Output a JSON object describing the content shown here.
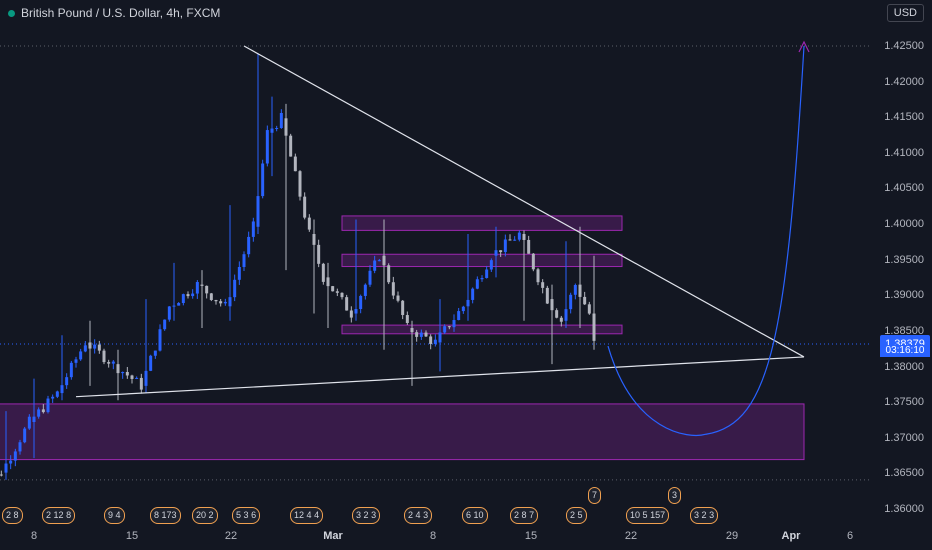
{
  "header": {
    "symbol_title": "British Pound / U.S. Dollar, 4h, FXCM",
    "currency_button": "USD"
  },
  "price_scale": {
    "ticks": [
      "1.42500",
      "1.42000",
      "1.41500",
      "1.41000",
      "1.40500",
      "1.40000",
      "1.39500",
      "1.39000",
      "1.38500",
      "1.38000",
      "1.37500",
      "1.37000",
      "1.36500",
      "1.36000"
    ],
    "current_price": "1.38379",
    "countdown": "03:16:10"
  },
  "time_scale": {
    "ticks": [
      "8",
      "15",
      "22",
      "Mar",
      "8",
      "15",
      "22",
      "29",
      "Apr",
      "6"
    ],
    "bold_ticks": [
      "Mar"
    ]
  },
  "events": {
    "flags": [
      "2",
      "8",
      "2",
      "12",
      "8",
      "9",
      "4",
      "8",
      "173",
      "20",
      "2",
      "5",
      "3",
      "6",
      "12",
      "4",
      "4",
      "3",
      "2",
      "3",
      "2",
      "4",
      "3",
      "6",
      "10",
      "2",
      "8",
      "7",
      "2",
      "5",
      "10",
      "5",
      "157",
      "3",
      "2",
      "3",
      "7",
      "3"
    ]
  },
  "chart_data": {
    "type": "candlestick",
    "title": "British Pound / U.S. Dollar, 4h, FXCM",
    "y_range": [
      1.358,
      1.432
    ],
    "x_range": [
      "2021-02-01",
      "2021-04-08"
    ],
    "current_price": 1.38379,
    "candles_approx": [
      {
        "date": "2021-02-04",
        "open": 1.363,
        "close": 1.366,
        "high": 1.367,
        "low": 1.362
      },
      {
        "date": "2021-02-06",
        "open": 1.366,
        "close": 1.373,
        "high": 1.3745,
        "low": 1.365
      },
      {
        "date": "2021-02-08",
        "open": 1.373,
        "close": 1.377,
        "high": 1.379,
        "low": 1.368
      },
      {
        "date": "2021-02-10",
        "open": 1.377,
        "close": 1.384,
        "high": 1.385,
        "low": 1.376
      },
      {
        "date": "2021-02-12",
        "open": 1.384,
        "close": 1.381,
        "high": 1.387,
        "low": 1.378
      },
      {
        "date": "2021-02-14",
        "open": 1.381,
        "close": 1.378,
        "high": 1.383,
        "low": 1.376
      },
      {
        "date": "2021-02-16",
        "open": 1.378,
        "close": 1.389,
        "high": 1.39,
        "low": 1.377
      },
      {
        "date": "2021-02-18",
        "open": 1.389,
        "close": 1.392,
        "high": 1.395,
        "low": 1.387
      },
      {
        "date": "2021-02-20",
        "open": 1.392,
        "close": 1.389,
        "high": 1.394,
        "low": 1.386
      },
      {
        "date": "2021-02-22",
        "open": 1.389,
        "close": 1.4,
        "high": 1.403,
        "low": 1.387
      },
      {
        "date": "2021-02-24",
        "open": 1.4,
        "close": 1.413,
        "high": 1.424,
        "low": 1.399
      },
      {
        "date": "2021-02-25",
        "open": 1.413,
        "close": 1.415,
        "high": 1.418,
        "low": 1.407
      },
      {
        "date": "2021-02-26",
        "open": 1.415,
        "close": 1.399,
        "high": 1.417,
        "low": 1.394
      },
      {
        "date": "2021-02-28",
        "open": 1.399,
        "close": 1.393,
        "high": 1.401,
        "low": 1.388
      },
      {
        "date": "2021-03-01",
        "open": 1.393,
        "close": 1.388,
        "high": 1.395,
        "low": 1.386
      },
      {
        "date": "2021-03-03",
        "open": 1.388,
        "close": 1.396,
        "high": 1.401,
        "low": 1.387
      },
      {
        "date": "2021-03-05",
        "open": 1.396,
        "close": 1.386,
        "high": 1.401,
        "low": 1.383
      },
      {
        "date": "2021-03-07",
        "open": 1.386,
        "close": 1.384,
        "high": 1.387,
        "low": 1.378
      },
      {
        "date": "2021-03-09",
        "open": 1.384,
        "close": 1.389,
        "high": 1.39,
        "low": 1.38
      },
      {
        "date": "2021-03-11",
        "open": 1.389,
        "close": 1.396,
        "high": 1.399,
        "low": 1.387
      },
      {
        "date": "2021-03-13",
        "open": 1.396,
        "close": 1.399,
        "high": 1.4,
        "low": 1.393
      },
      {
        "date": "2021-03-15",
        "open": 1.399,
        "close": 1.39,
        "high": 1.399,
        "low": 1.387
      },
      {
        "date": "2021-03-17",
        "open": 1.39,
        "close": 1.387,
        "high": 1.392,
        "low": 1.381
      },
      {
        "date": "2021-03-18",
        "open": 1.387,
        "close": 1.392,
        "high": 1.398,
        "low": 1.386
      },
      {
        "date": "2021-03-19",
        "open": 1.392,
        "close": 1.388,
        "high": 1.4,
        "low": 1.386
      },
      {
        "date": "2021-03-20",
        "open": 1.388,
        "close": 1.3838,
        "high": 1.396,
        "low": 1.383
      }
    ],
    "zones": [
      {
        "low": 1.3995,
        "high": 1.4015,
        "from": "2021-03-02",
        "to": "2021-03-22"
      },
      {
        "low": 1.3945,
        "high": 1.3962,
        "from": "2021-03-02",
        "to": "2021-03-22"
      },
      {
        "low": 1.3852,
        "high": 1.3864,
        "from": "2021-03-02",
        "to": "2021-03-22"
      },
      {
        "low": 1.3678,
        "high": 1.3755,
        "from": "2021-02-01",
        "to": "2021-04-04"
      }
    ],
    "trendlines": [
      {
        "from": [
          "2021-02-23",
          1.425
        ],
        "to": [
          "2021-04-04",
          1.382
        ]
      },
      {
        "from": [
          "2021-02-11",
          1.3765
        ],
        "to": [
          "2021-04-04",
          1.382
        ]
      }
    ],
    "projection": [
      [
        "2021-03-21",
        1.3835
      ],
      [
        "2021-03-26",
        1.373
      ],
      [
        "2021-03-28",
        1.372
      ],
      [
        "2021-04-01",
        1.38
      ],
      [
        "2021-04-04",
        1.425
      ]
    ],
    "target_price": 1.425,
    "grid": false
  }
}
